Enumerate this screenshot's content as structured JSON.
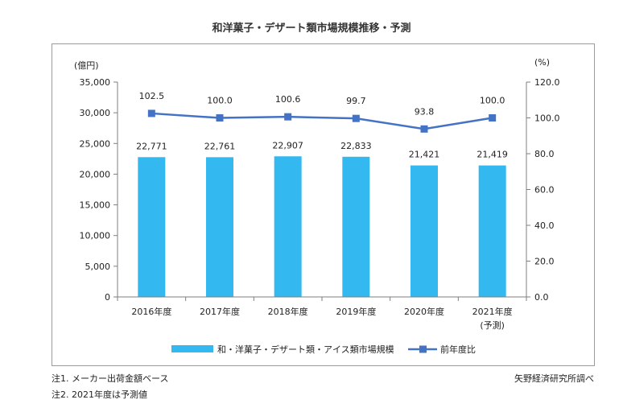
{
  "chart_data": {
    "type": "bar+line",
    "title": "和洋菓子・デザート類市場規模推移・予測",
    "categories": [
      "2016年度",
      "2017年度",
      "2018年度",
      "2019年度",
      "2020年度",
      "2021年度"
    ],
    "category_sublabels": [
      "",
      "",
      "",
      "",
      "",
      "(予測)"
    ],
    "series": [
      {
        "name": "和・洋菓子・デザート類・アイス類市場規模",
        "type": "bar",
        "axis": "left",
        "values": [
          22771,
          22761,
          22907,
          22833,
          21421,
          21419
        ],
        "labels": [
          "22,771",
          "22,761",
          "22,907",
          "22,833",
          "21,421",
          "21,419"
        ],
        "color": "#33b9f0"
      },
      {
        "name": "前年度比",
        "type": "line",
        "axis": "right",
        "values": [
          102.5,
          100.0,
          100.6,
          99.7,
          93.8,
          100.0
        ],
        "labels": [
          "102.5",
          "100.0",
          "100.6",
          "99.7",
          "93.8",
          "100.0"
        ],
        "color": "#4472c4"
      }
    ],
    "y_left": {
      "unit": "(億円)",
      "ylim": [
        0,
        35000
      ],
      "ticks": [
        0,
        5000,
        10000,
        15000,
        20000,
        25000,
        30000,
        35000
      ],
      "tick_labels": [
        "0",
        "5,000",
        "10,000",
        "15,000",
        "20,000",
        "25,000",
        "30,000",
        "35,000"
      ]
    },
    "y_right": {
      "unit": "(%)",
      "ylim": [
        0,
        120
      ],
      "ticks": [
        0,
        20,
        40,
        60,
        80,
        100,
        120
      ],
      "tick_labels": [
        "0.0",
        "20.0",
        "40.0",
        "60.0",
        "80.0",
        "100.0",
        "120.0"
      ]
    },
    "grid": false,
    "legend_position": "bottom"
  },
  "notes": {
    "note1": "注1. メーカー出荷金額ベース",
    "note2": "注2. 2021年度は予測値",
    "source": "矢野経済研究所調べ"
  }
}
